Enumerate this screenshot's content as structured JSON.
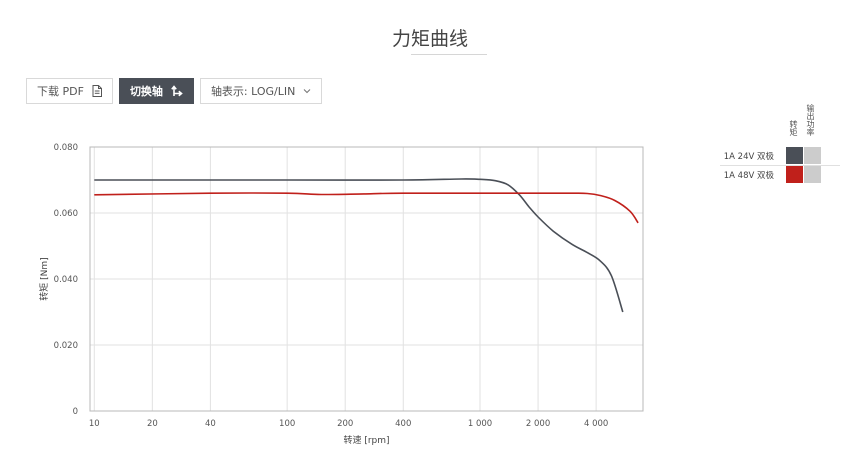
{
  "title": "力矩曲线",
  "toolbar": {
    "download_label": "下载 PDF",
    "switch_axis_label": "切换轴",
    "axis_display_label": "轴表示: LOG/LIN"
  },
  "legend": {
    "header_torque": "转矩",
    "header_output_power": "输出功率",
    "rows": [
      {
        "name": "1A 24V 双极",
        "torque_color": "#4a4f57",
        "power_color": "#cccccc"
      },
      {
        "name": "1A 48V 双极",
        "torque_color": "#c0201b",
        "power_color": "#cccccc"
      }
    ]
  },
  "chart_data": {
    "type": "line",
    "title": "力矩曲线",
    "xlabel": "转速 [rpm]",
    "ylabel": "转矩 [Nm]",
    "xscale": "log",
    "xlim": [
      9.5,
      7000
    ],
    "ylim": [
      0,
      0.08
    ],
    "xticks": [
      10,
      20,
      40,
      100,
      200,
      400,
      1000,
      2000,
      4000
    ],
    "xtick_labels": [
      "10",
      "20",
      "40",
      "100",
      "200",
      "400",
      "1 000",
      "2 000",
      "4 000"
    ],
    "yticks": [
      0,
      0.02,
      0.04,
      0.06,
      0.08
    ],
    "ytick_labels": [
      "0",
      "0.020",
      "0.040",
      "0.060",
      "0.080"
    ],
    "grid": true,
    "legend_position": "right",
    "series": [
      {
        "name": "1A 24V 双极",
        "color": "#4a4f57",
        "x": [
          10,
          40,
          100,
          400,
          800,
          1000,
          1200,
          1400,
          1600,
          1800,
          2000,
          2400,
          3000,
          3600,
          4200,
          4800,
          5500
        ],
        "y": [
          0.07,
          0.07,
          0.07,
          0.07,
          0.0703,
          0.0702,
          0.0698,
          0.0685,
          0.0655,
          0.0618,
          0.0588,
          0.0545,
          0.0505,
          0.048,
          0.0455,
          0.041,
          0.03
        ]
      },
      {
        "name": "1A 48V 双极",
        "color": "#c0201b",
        "x": [
          10,
          40,
          100,
          150,
          250,
          400,
          1000,
          2000,
          3000,
          3600,
          4200,
          5000,
          6000,
          6600
        ],
        "y": [
          0.0655,
          0.066,
          0.066,
          0.0656,
          0.0658,
          0.066,
          0.066,
          0.066,
          0.066,
          0.0659,
          0.0653,
          0.0638,
          0.0605,
          0.057
        ]
      }
    ]
  }
}
